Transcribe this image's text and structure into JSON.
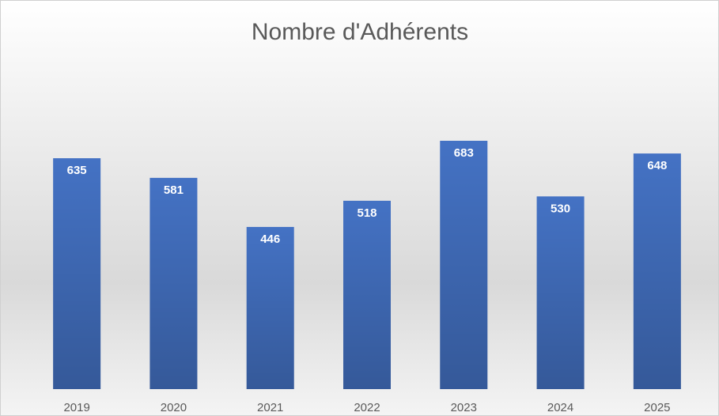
{
  "chart_data": {
    "type": "bar",
    "title": "Nombre d'Adhérents",
    "categories": [
      "2019",
      "2020",
      "2021",
      "2022",
      "2023",
      "2024",
      "2025"
    ],
    "values": [
      635,
      581,
      446,
      518,
      683,
      530,
      648
    ],
    "color": "#4472c4"
  }
}
